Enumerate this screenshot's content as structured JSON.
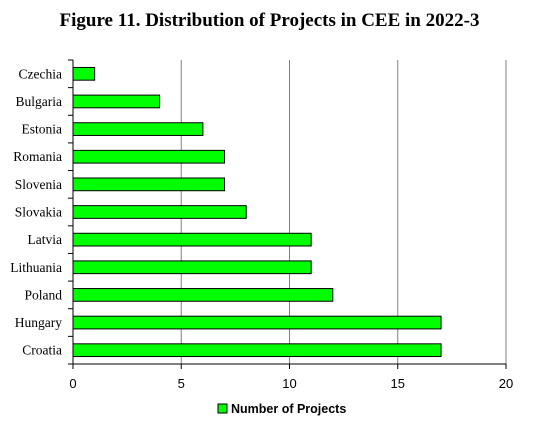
{
  "chart_data": {
    "type": "bar",
    "orientation": "horizontal",
    "title": "Figure 11. Distribution of Projects in CEE in 2022-3",
    "categories": [
      "Czechia",
      "Bulgaria",
      "Estonia",
      "Romania",
      "Slovenia",
      "Slovakia",
      "Latvia",
      "Lithuania",
      "Poland",
      "Hungary",
      "Croatia"
    ],
    "series": [
      {
        "name": "Number of Projects",
        "values": [
          1,
          4,
          6,
          7,
          7,
          8,
          11,
          11,
          12,
          17,
          17
        ]
      }
    ],
    "xlim": [
      0,
      20
    ],
    "xticks": [
      0,
      5,
      10,
      15,
      20
    ],
    "grid": "vertical",
    "legend": "bottom",
    "colors": {
      "bar": "#00ff00",
      "bar_border": "#000000"
    }
  }
}
